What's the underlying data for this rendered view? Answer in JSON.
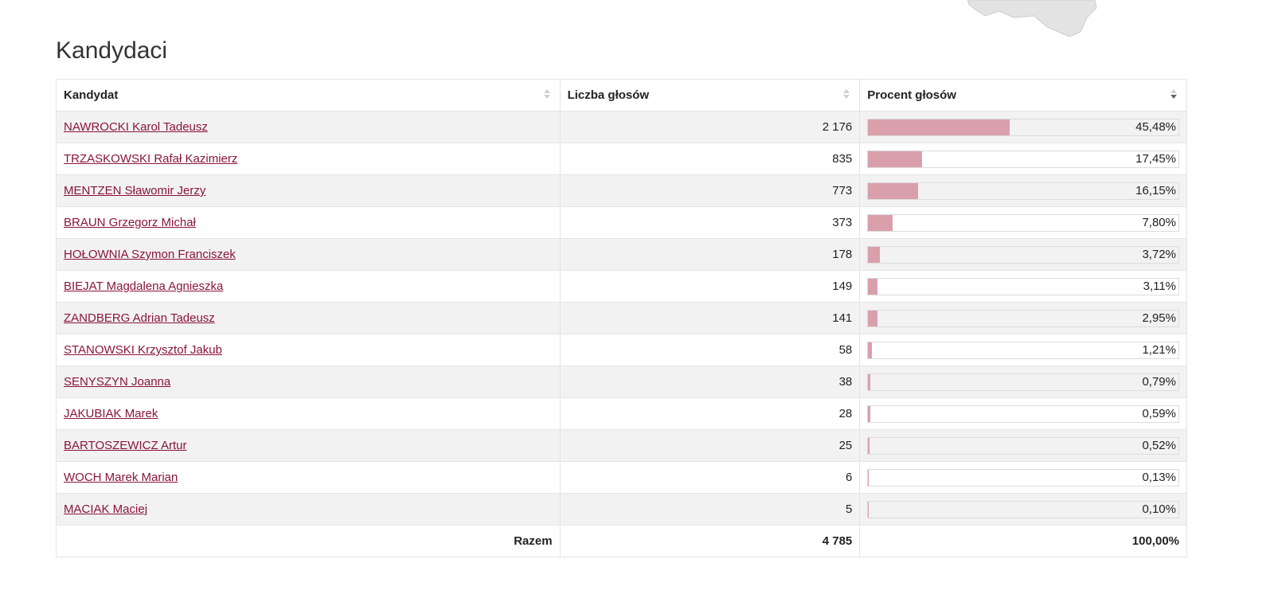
{
  "heading": "Kandydaci",
  "table": {
    "headers": {
      "candidate": "Kandydat",
      "votes": "Liczba głosów",
      "percent": "Procent głosów"
    },
    "sorted_column": "percent",
    "sort_direction": "descending",
    "rows": [
      {
        "name": "NAWROCKI Karol Tadeusz",
        "votes": "2 176",
        "percent": "45,48%",
        "fill": 45.48
      },
      {
        "name": "TRZASKOWSKI Rafał Kazimierz",
        "votes": "835",
        "percent": "17,45%",
        "fill": 17.45
      },
      {
        "name": "MENTZEN Sławomir Jerzy",
        "votes": "773",
        "percent": "16,15%",
        "fill": 16.15
      },
      {
        "name": "BRAUN Grzegorz Michał",
        "votes": "373",
        "percent": "7,80%",
        "fill": 7.8
      },
      {
        "name": "HOŁOWNIA Szymon Franciszek",
        "votes": "178",
        "percent": "3,72%",
        "fill": 3.72
      },
      {
        "name": "BIEJAT Magdalena Agnieszka",
        "votes": "149",
        "percent": "3,11%",
        "fill": 3.11
      },
      {
        "name": "ZANDBERG Adrian Tadeusz",
        "votes": "141",
        "percent": "2,95%",
        "fill": 2.95
      },
      {
        "name": "STANOWSKI Krzysztof Jakub",
        "votes": "58",
        "percent": "1,21%",
        "fill": 1.21
      },
      {
        "name": "SENYSZYN Joanna",
        "votes": "38",
        "percent": "0,79%",
        "fill": 0.79
      },
      {
        "name": "JAKUBIAK Marek",
        "votes": "28",
        "percent": "0,59%",
        "fill": 0.59
      },
      {
        "name": "BARTOSZEWICZ Artur",
        "votes": "25",
        "percent": "0,52%",
        "fill": 0.52
      },
      {
        "name": "WOCH Marek Marian",
        "votes": "6",
        "percent": "0,13%",
        "fill": 0.13
      },
      {
        "name": "MACIAK Maciej",
        "votes": "5",
        "percent": "0,10%",
        "fill": 0.1
      }
    ],
    "footer": {
      "label": "Razem",
      "votes": "4 785",
      "percent": "100,00%"
    }
  },
  "colors": {
    "link": "#8a1538",
    "bar_fill": "#d9a0ab",
    "row_stripe": "#f2f2f2"
  }
}
